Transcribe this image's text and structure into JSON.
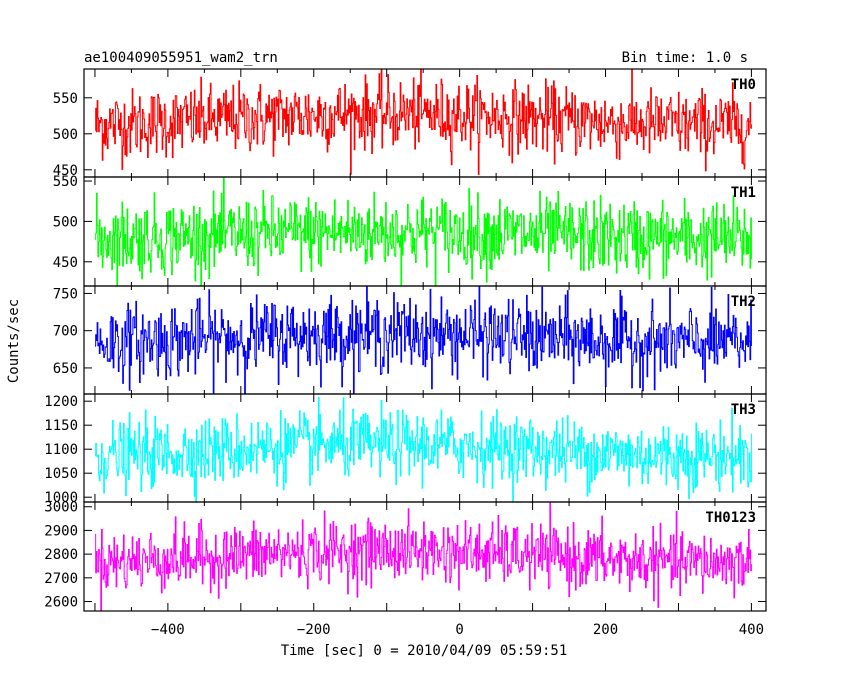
{
  "chart_data": {
    "type": "line",
    "title": "ae100409055951_wam2_trn",
    "bin_time": "Bin time: 1.0 s",
    "xlabel": "Time [sec] 0 = 2010/04/09 05:59:51",
    "ylabel": "Counts/sec",
    "xlim": [
      -515,
      420
    ],
    "x_ticks": [
      -400,
      -200,
      0,
      200,
      400
    ],
    "x_tick_labels": [
      "−400",
      "−200",
      "0",
      "200",
      "400"
    ],
    "x_range": [
      -500,
      400
    ],
    "n_bins": 900,
    "series": [
      {
        "name": "TH0",
        "color": "#ff0000",
        "ylim": [
          440,
          590
        ],
        "mean": 520,
        "noise": 24,
        "trend": 8,
        "y_ticks": [
          450,
          500,
          550
        ],
        "y_tick_labels": [
          "450",
          "500",
          "550"
        ]
      },
      {
        "name": "TH1",
        "color": "#00ff00",
        "ylim": [
          420,
          555
        ],
        "mean": 483,
        "noise": 23,
        "trend": 4,
        "y_ticks": [
          450,
          500,
          550
        ],
        "y_tick_labels": [
          "450",
          "500",
          "550"
        ]
      },
      {
        "name": "TH2",
        "color": "#0000ff",
        "ylim": [
          615,
          760
        ],
        "mean": 690,
        "noise": 25,
        "trend": 6,
        "y_ticks": [
          650,
          700,
          750
        ],
        "y_tick_labels": [
          "650",
          "700",
          "750"
        ]
      },
      {
        "name": "TH3",
        "color": "#00ffff",
        "ylim": [
          990,
          1215
        ],
        "mean": 1098,
        "noise": 35,
        "trend": 12,
        "y_ticks": [
          1000,
          1050,
          1100,
          1150,
          1200
        ],
        "y_tick_labels": [
          "1000",
          "1050",
          "1100",
          "1150",
          "1200"
        ]
      },
      {
        "name": "TH0123",
        "color": "#ff00ff",
        "ylim": [
          2560,
          3020
        ],
        "mean": 2790,
        "noise": 65,
        "trend": 25,
        "y_ticks": [
          2600,
          2700,
          2800,
          2900,
          3000
        ],
        "y_tick_labels": [
          "2600",
          "2700",
          "2800",
          "2900",
          "3000"
        ]
      }
    ]
  }
}
